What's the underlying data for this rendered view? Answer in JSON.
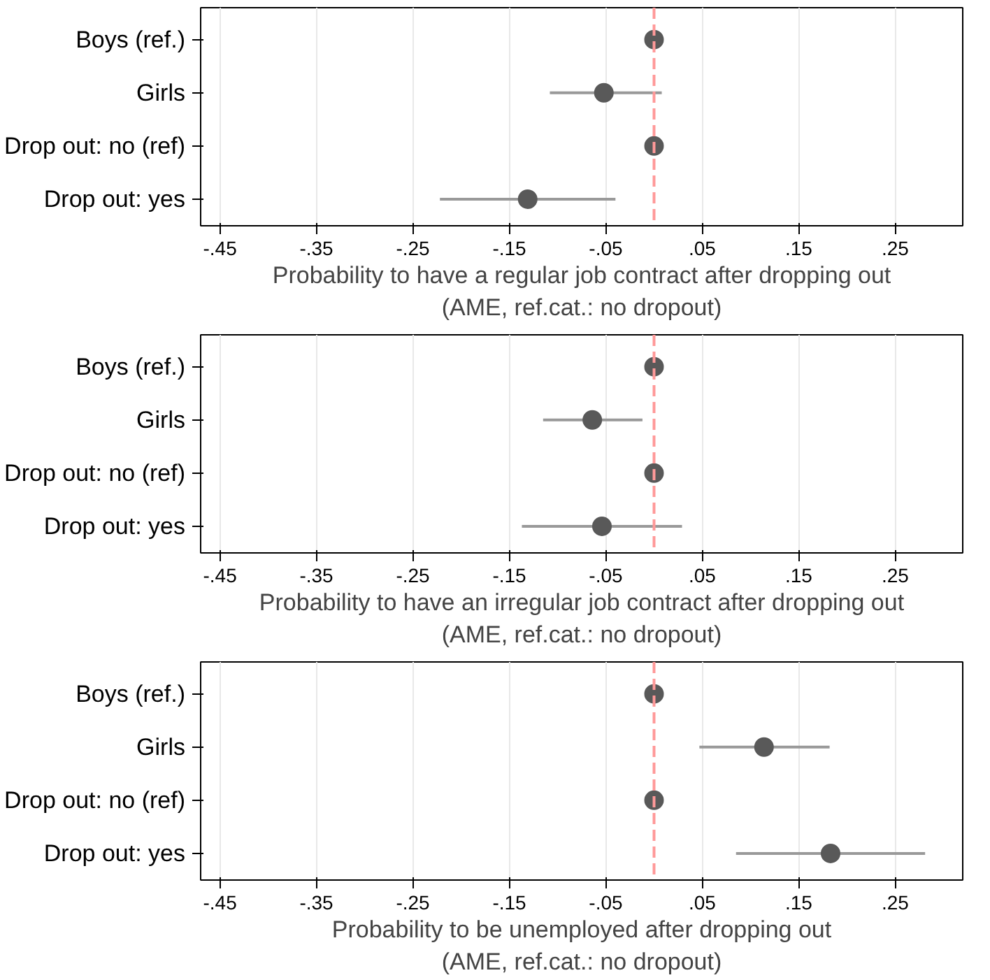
{
  "chart_data": [
    {
      "type": "scatter",
      "orientation": "horizontal",
      "categories": [
        "Boys (ref.)",
        "Girls",
        "Drop out: no (ref)",
        "Drop out: yes"
      ],
      "series": [
        {
          "color": "#595959",
          "values": [
            0,
            -0.052,
            0,
            -0.131
          ],
          "errors": [
            null,
            [
              -0.108,
              0.008
            ],
            null,
            [
              -0.222,
              -0.04
            ]
          ]
        }
      ],
      "xlabel": "Probability to have a regular job contract after dropping out\n(AME, ref.cat.: no dropout)",
      "xlim": [
        -0.47,
        0.32
      ],
      "xticks": [
        {
          "value": -0.45,
          "label": "-.45"
        },
        {
          "value": -0.35,
          "label": "-.35"
        },
        {
          "value": -0.25,
          "label": "-.25"
        },
        {
          "value": -0.15,
          "label": "-.15"
        },
        {
          "value": -0.05,
          "label": "-.05"
        },
        {
          "value": 0.05,
          "label": ".05"
        },
        {
          "value": 0.15,
          "label": ".15"
        },
        {
          "value": 0.25,
          "label": ".25"
        }
      ],
      "grid": "x",
      "marker": "circle",
      "ref_lines": [
        {
          "axis": "x",
          "value": 0,
          "color": "#ff9999",
          "line_style": "dashed"
        }
      ]
    },
    {
      "type": "scatter",
      "orientation": "horizontal",
      "categories": [
        "Boys (ref.)",
        "Girls",
        "Drop out: no (ref)",
        "Drop out: yes"
      ],
      "series": [
        {
          "color": "#595959",
          "values": [
            0,
            -0.064,
            0,
            -0.054
          ],
          "errors": [
            null,
            [
              -0.115,
              -0.012
            ],
            null,
            [
              -0.137,
              0.029
            ]
          ]
        }
      ],
      "xlabel": "Probability to have an irregular job contract after dropping out\n(AME, ref.cat.: no dropout)",
      "xlim": [
        -0.47,
        0.32
      ],
      "xticks": [
        {
          "value": -0.45,
          "label": "-.45"
        },
        {
          "value": -0.35,
          "label": "-.35"
        },
        {
          "value": -0.25,
          "label": "-.25"
        },
        {
          "value": -0.15,
          "label": "-.15"
        },
        {
          "value": -0.05,
          "label": "-.05"
        },
        {
          "value": 0.05,
          "label": ".05"
        },
        {
          "value": 0.15,
          "label": ".15"
        },
        {
          "value": 0.25,
          "label": ".25"
        }
      ],
      "grid": "x",
      "marker": "circle",
      "ref_lines": [
        {
          "axis": "x",
          "value": 0,
          "color": "#ff9999",
          "line_style": "dashed"
        }
      ]
    },
    {
      "type": "scatter",
      "orientation": "horizontal",
      "categories": [
        "Boys (ref.)",
        "Girls",
        "Drop out: no (ref)",
        "Drop out: yes"
      ],
      "series": [
        {
          "color": "#595959",
          "values": [
            0,
            0.114,
            0,
            0.183
          ],
          "errors": [
            null,
            [
              0.047,
              0.182
            ],
            null,
            [
              0.085,
              0.281
            ]
          ]
        }
      ],
      "xlabel": "Probability to be unemployed after dropping out\n(AME, ref.cat.: no dropout)",
      "xlim": [
        -0.47,
        0.32
      ],
      "xticks": [
        {
          "value": -0.45,
          "label": "-.45"
        },
        {
          "value": -0.35,
          "label": "-.35"
        },
        {
          "value": -0.25,
          "label": "-.25"
        },
        {
          "value": -0.15,
          "label": "-.15"
        },
        {
          "value": -0.05,
          "label": "-.05"
        },
        {
          "value": 0.05,
          "label": ".05"
        },
        {
          "value": 0.15,
          "label": ".15"
        },
        {
          "value": 0.25,
          "label": ".25"
        }
      ],
      "grid": "x",
      "marker": "circle",
      "ref_lines": [
        {
          "axis": "x",
          "value": 0,
          "color": "#ff9999",
          "line_style": "dashed"
        }
      ]
    }
  ]
}
